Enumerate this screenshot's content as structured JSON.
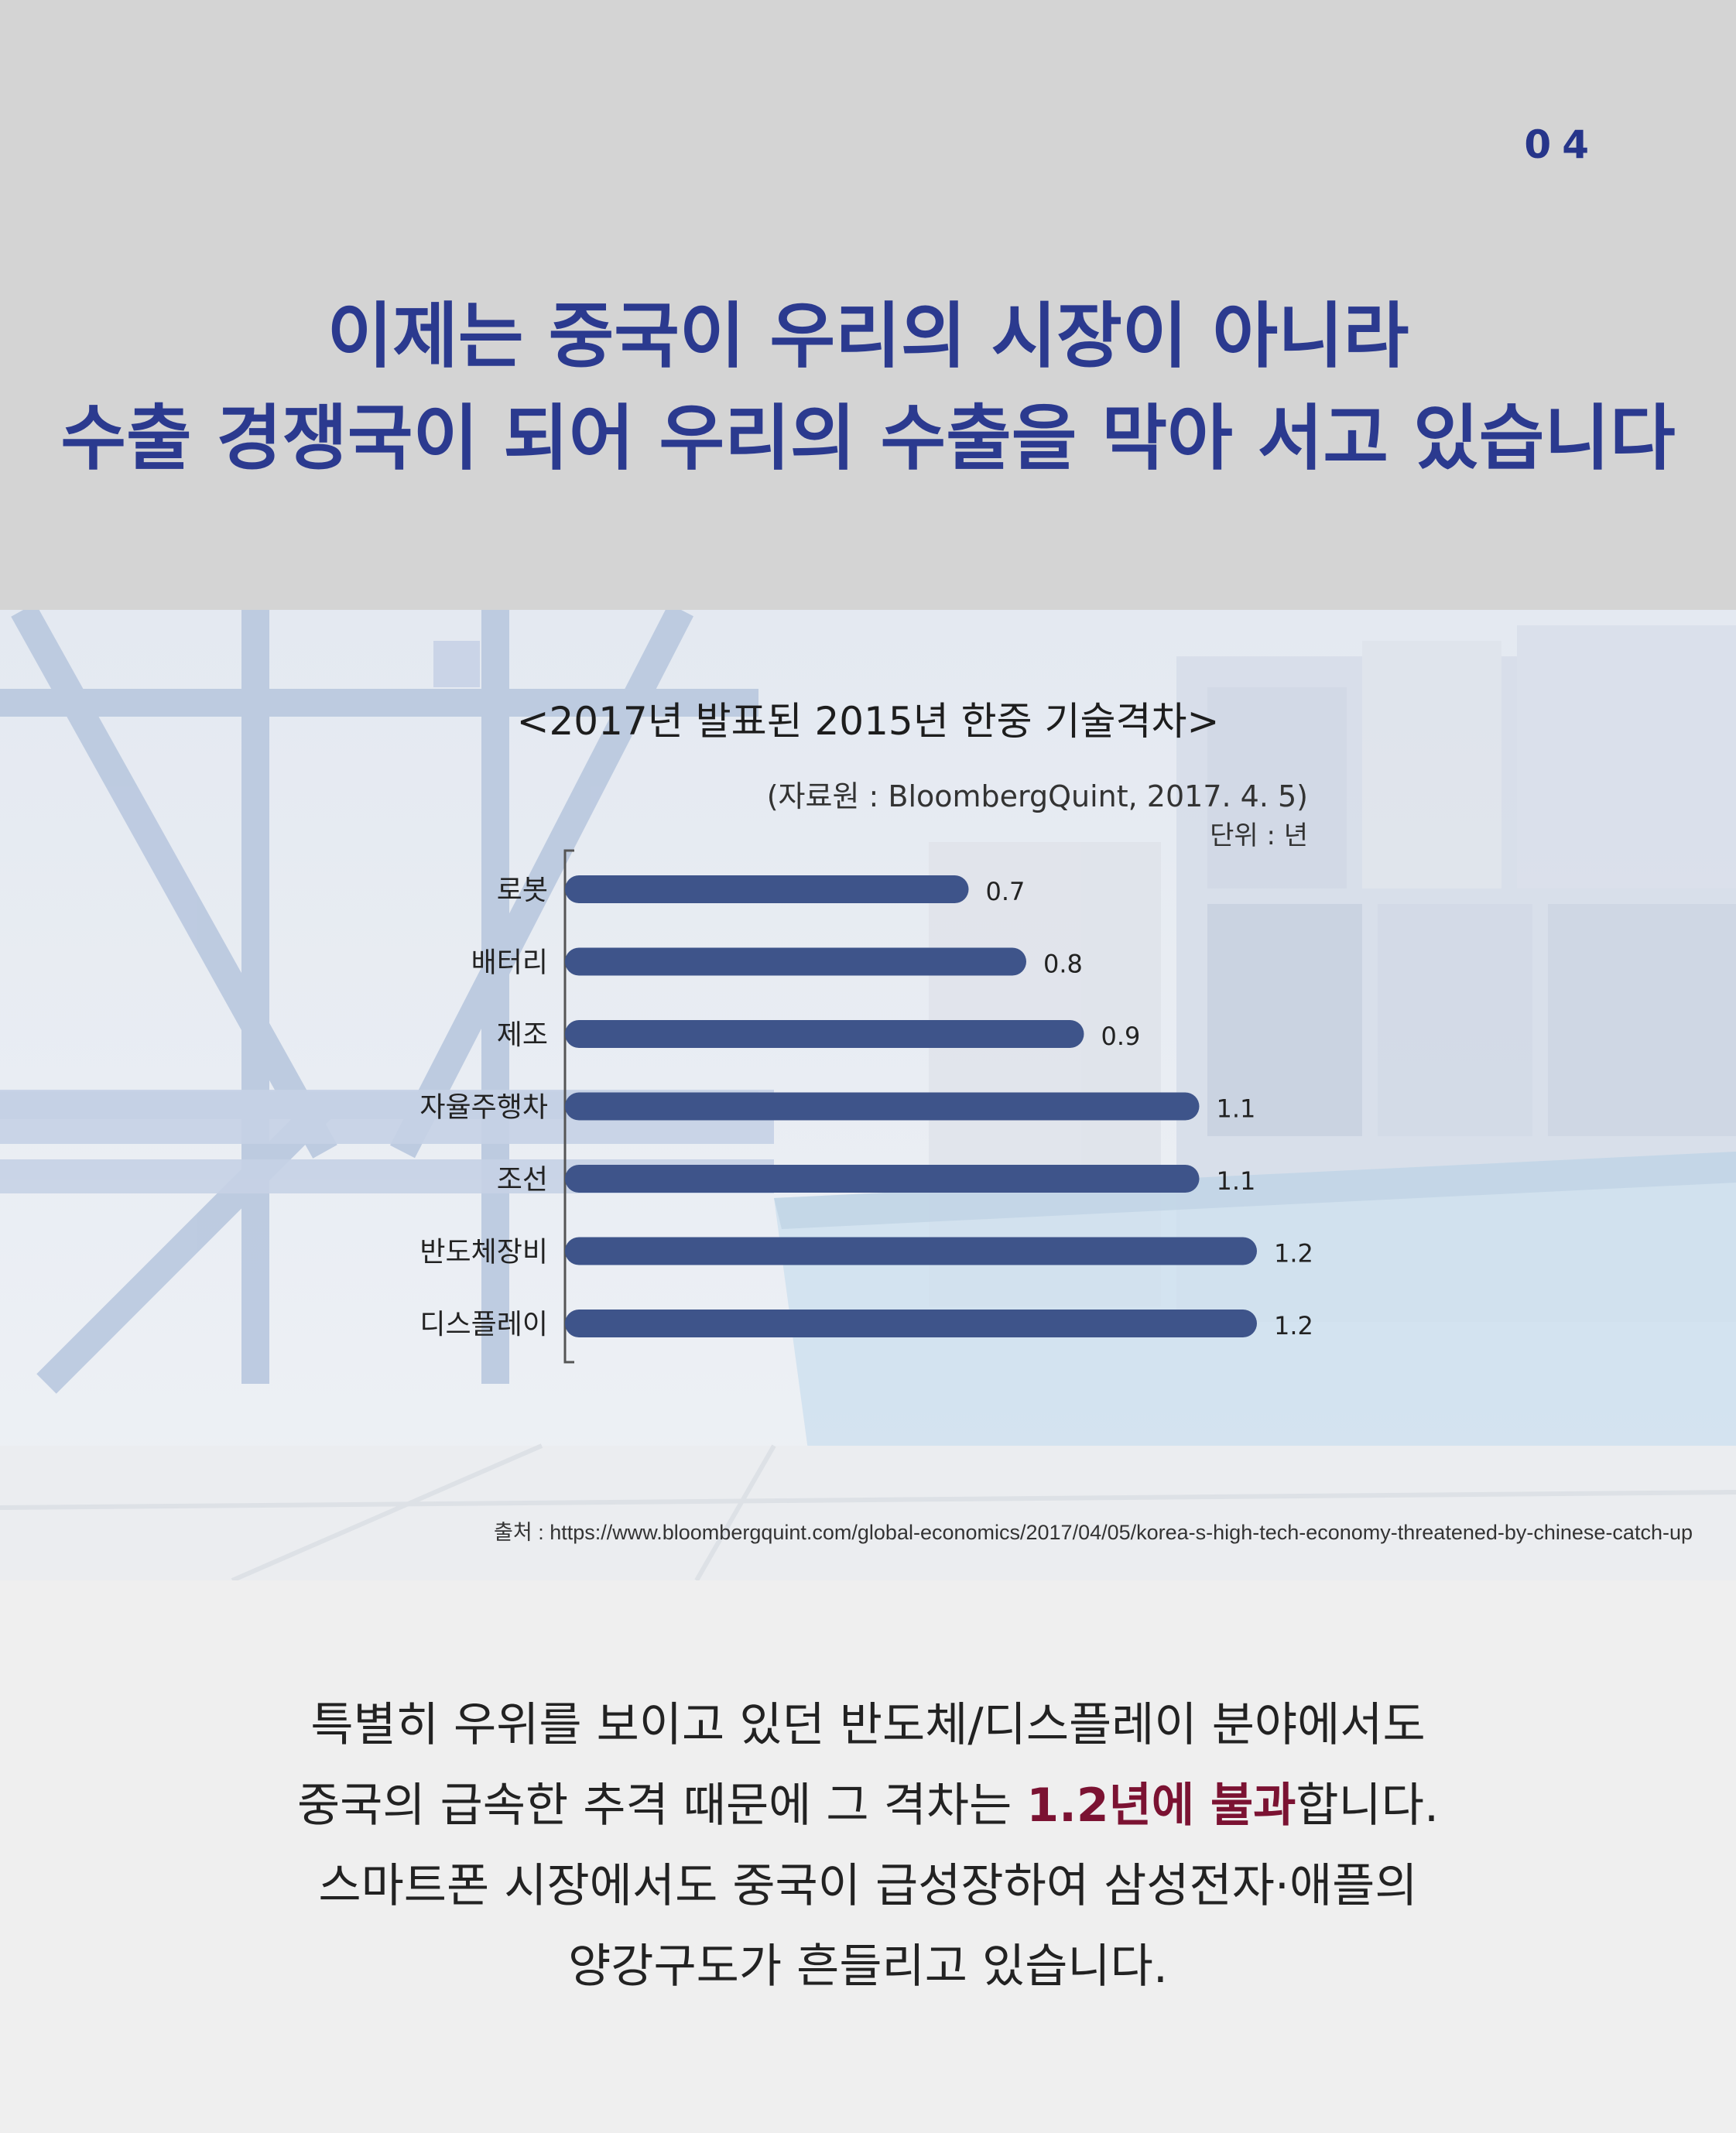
{
  "page_number": "04",
  "headline": {
    "line1": "이제는 중국이 우리의 시장이 아니라",
    "line2": "수출 경쟁국이 되어 우리의 수출을 막아 서고 있습니다"
  },
  "chart_data": {
    "type": "bar",
    "orientation": "horizontal",
    "title": "<2017년 발표된 2015년 한중 기술격차>",
    "source_short": "(자료원 : BloombergQuint, 2017. 4. 5)",
    "unit": "단위 : 년",
    "categories": [
      "로봇",
      "배터리",
      "제조",
      "자율주행차",
      "조선",
      "반도체장비",
      "디스플레이"
    ],
    "values": [
      0.7,
      0.8,
      0.9,
      1.1,
      1.1,
      1.2,
      1.2
    ],
    "value_labels": [
      "0.7",
      "0.8",
      "0.9",
      "1.1",
      "1.1",
      "1.2",
      "1.2"
    ],
    "bar_color": "#3e548a",
    "xlim": [
      0,
      1.2
    ],
    "grid": false
  },
  "source_url": "출처 : https://www.bloombergquint.com/global-economics/2017/04/05/korea-s-high-tech-economy-threatened-by-chinese-catch-up",
  "body": {
    "line1": "특별히 우위를 보이고 있던 반도체/디스플레이 분야에서도",
    "line2_before": "중국의 급속한 추격 때문에 그 격차는 ",
    "line2_emphasis": "1.2년에 불과",
    "line2_after": "합니다.",
    "line3": "스마트폰 시장에서도 중국이 급성장하여 삼성전자·애플의",
    "line4": "양강구도가 흔들리고 있습니다."
  },
  "colors": {
    "headline": "#2b3a8f",
    "emphasis": "#7b1232",
    "top_background": "#d4d4d4",
    "bottom_background": "#efefef"
  }
}
